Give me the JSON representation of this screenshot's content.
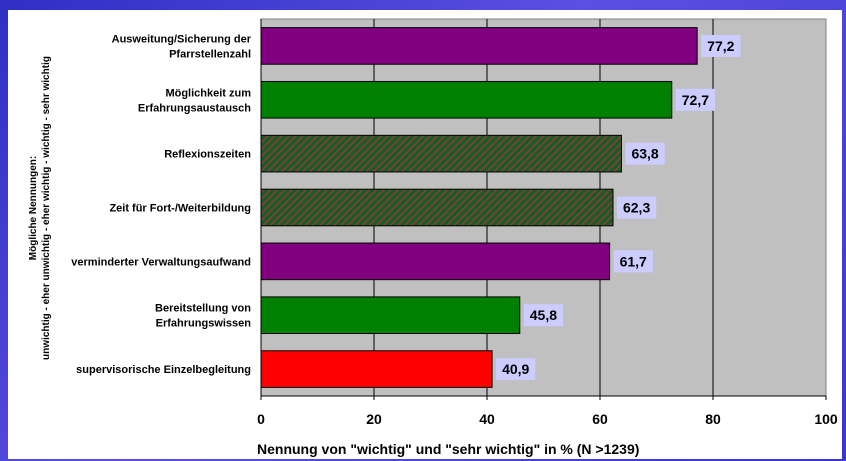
{
  "chart_data": {
    "type": "bar",
    "orientation": "horizontal",
    "categories": [
      [
        "Ausweitung/Sicherung der",
        "Pfarrstellenzahl"
      ],
      [
        "Möglichkeit zum",
        "Erfahrungsaustausch"
      ],
      [
        "Reflexionszeiten"
      ],
      [
        "Zeit für Fort-/Weiterbildung"
      ],
      [
        "verminderter Verwaltungsaufwand"
      ],
      [
        "Bereitstellung von",
        "Erfahrungswissen"
      ],
      [
        "supervisorische Einzelbegleitung"
      ]
    ],
    "values": [
      77.2,
      72.7,
      63.8,
      62.3,
      61.7,
      45.8,
      40.9
    ],
    "value_labels": [
      "77,2",
      "72,7",
      "63,8",
      "62,3",
      "61,7",
      "45,8",
      "40,9"
    ],
    "bar_styles": [
      "purple",
      "green",
      "hatched",
      "hatched",
      "purple",
      "green",
      "red"
    ],
    "xlabel": "Nennung von \"wichtig\" und \"sehr wichtig\" in % (N >1239)",
    "ylabel_lines": [
      "Mögliche Nennungen:",
      "unwichtig - eher unwichtig - eher wichtig - wichtig - sehr wichtig"
    ],
    "xlim": [
      0,
      100
    ],
    "xticks": [
      0,
      20,
      40,
      60,
      80,
      100
    ],
    "grid": true
  },
  "colors": {
    "purple": "#800080",
    "green": "#008000",
    "red": "#ff0000",
    "hatch_base": "#1f5a1f",
    "hatch_line": "#b03060",
    "plot_bg": "#c0c0c0",
    "label_box": "#ccccff",
    "frame": "#3a36cf"
  }
}
